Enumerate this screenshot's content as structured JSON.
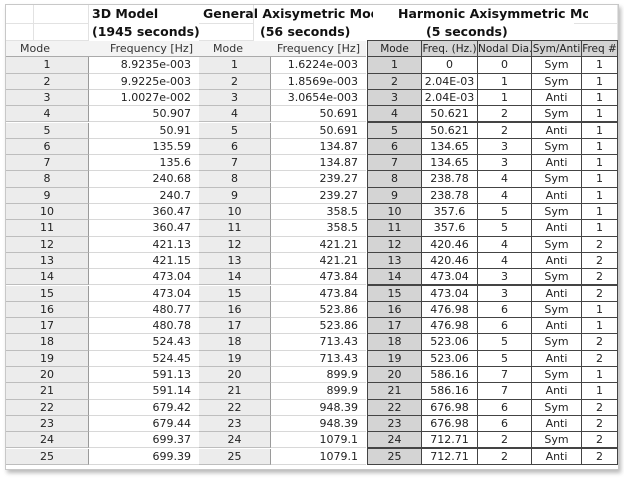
{
  "headers": {
    "model_3d": "3D  Model",
    "model_3d_time": "(1945 seconds)",
    "general": "General Axisymetric Model",
    "general_time": "(56 seconds)",
    "harmonic": "Harmonic Axisymmetric Model",
    "harmonic_time": "(5 seconds)"
  },
  "columns": {
    "mode": "Mode",
    "frequency": "Frequency [Hz]",
    "h_mode": "Mode",
    "h_freq": "Freq. (Hz.)",
    "h_nodal": "Nodal Dia.",
    "h_sym": "Sym/Anti",
    "h_freqnum": "Freq #"
  },
  "rows": [
    {
      "mode": "1",
      "f3d": "8.9235e-003",
      "gmode": "1",
      "fgen": "1.6224e-003",
      "hmode": "1",
      "fh": "0",
      "nd": "0",
      "sym": "Sym",
      "fn": "1"
    },
    {
      "mode": "2",
      "f3d": "9.9225e-003",
      "gmode": "2",
      "fgen": "1.8569e-003",
      "hmode": "2",
      "fh": "2.04E-03",
      "nd": "1",
      "sym": "Sym",
      "fn": "1"
    },
    {
      "mode": "3",
      "f3d": "1.0027e-002",
      "gmode": "3",
      "fgen": "3.0654e-003",
      "hmode": "3",
      "fh": "2.04E-03",
      "nd": "1",
      "sym": "Anti",
      "fn": "1"
    },
    {
      "mode": "4",
      "f3d": "50.907",
      "gmode": "4",
      "fgen": "50.691",
      "hmode": "4",
      "fh": "50.621",
      "nd": "2",
      "sym": "Sym",
      "fn": "1"
    },
    {
      "mode": "5",
      "f3d": "50.91",
      "gmode": "5",
      "fgen": "50.691",
      "hmode": "5",
      "fh": "50.621",
      "nd": "2",
      "sym": "Anti",
      "fn": "1"
    },
    {
      "mode": "6",
      "f3d": "135.59",
      "gmode": "6",
      "fgen": "134.87",
      "hmode": "6",
      "fh": "134.65",
      "nd": "3",
      "sym": "Sym",
      "fn": "1"
    },
    {
      "mode": "7",
      "f3d": "135.6",
      "gmode": "7",
      "fgen": "134.87",
      "hmode": "7",
      "fh": "134.65",
      "nd": "3",
      "sym": "Anti",
      "fn": "1"
    },
    {
      "mode": "8",
      "f3d": "240.68",
      "gmode": "8",
      "fgen": "239.27",
      "hmode": "8",
      "fh": "238.78",
      "nd": "4",
      "sym": "Sym",
      "fn": "1"
    },
    {
      "mode": "9",
      "f3d": "240.7",
      "gmode": "9",
      "fgen": "239.27",
      "hmode": "9",
      "fh": "238.78",
      "nd": "4",
      "sym": "Anti",
      "fn": "1"
    },
    {
      "mode": "10",
      "f3d": "360.47",
      "gmode": "10",
      "fgen": "358.5",
      "hmode": "10",
      "fh": "357.6",
      "nd": "5",
      "sym": "Sym",
      "fn": "1"
    },
    {
      "mode": "11",
      "f3d": "360.47",
      "gmode": "11",
      "fgen": "358.5",
      "hmode": "11",
      "fh": "357.6",
      "nd": "5",
      "sym": "Anti",
      "fn": "1"
    },
    {
      "mode": "12",
      "f3d": "421.13",
      "gmode": "12",
      "fgen": "421.21",
      "hmode": "12",
      "fh": "420.46",
      "nd": "4",
      "sym": "Sym",
      "fn": "2"
    },
    {
      "mode": "13",
      "f3d": "421.15",
      "gmode": "13",
      "fgen": "421.21",
      "hmode": "13",
      "fh": "420.46",
      "nd": "4",
      "sym": "Anti",
      "fn": "2"
    },
    {
      "mode": "14",
      "f3d": "473.04",
      "gmode": "14",
      "fgen": "473.84",
      "hmode": "14",
      "fh": "473.04",
      "nd": "3",
      "sym": "Sym",
      "fn": "2"
    },
    {
      "mode": "15",
      "f3d": "473.04",
      "gmode": "15",
      "fgen": "473.84",
      "hmode": "15",
      "fh": "473.04",
      "nd": "3",
      "sym": "Anti",
      "fn": "2"
    },
    {
      "mode": "16",
      "f3d": "480.77",
      "gmode": "16",
      "fgen": "523.86",
      "hmode": "16",
      "fh": "476.98",
      "nd": "6",
      "sym": "Sym",
      "fn": "1"
    },
    {
      "mode": "17",
      "f3d": "480.78",
      "gmode": "17",
      "fgen": "523.86",
      "hmode": "17",
      "fh": "476.98",
      "nd": "6",
      "sym": "Anti",
      "fn": "1"
    },
    {
      "mode": "18",
      "f3d": "524.43",
      "gmode": "18",
      "fgen": "713.43",
      "hmode": "18",
      "fh": "523.06",
      "nd": "5",
      "sym": "Sym",
      "fn": "2"
    },
    {
      "mode": "19",
      "f3d": "524.45",
      "gmode": "19",
      "fgen": "713.43",
      "hmode": "19",
      "fh": "523.06",
      "nd": "5",
      "sym": "Anti",
      "fn": "2"
    },
    {
      "mode": "20",
      "f3d": "591.13",
      "gmode": "20",
      "fgen": "899.9",
      "hmode": "20",
      "fh": "586.16",
      "nd": "7",
      "sym": "Sym",
      "fn": "1"
    },
    {
      "mode": "21",
      "f3d": "591.14",
      "gmode": "21",
      "fgen": "899.9",
      "hmode": "21",
      "fh": "586.16",
      "nd": "7",
      "sym": "Anti",
      "fn": "1"
    },
    {
      "mode": "22",
      "f3d": "679.42",
      "gmode": "22",
      "fgen": "948.39",
      "hmode": "22",
      "fh": "676.98",
      "nd": "6",
      "sym": "Sym",
      "fn": "2"
    },
    {
      "mode": "23",
      "f3d": "679.44",
      "gmode": "23",
      "fgen": "948.39",
      "hmode": "23",
      "fh": "676.98",
      "nd": "6",
      "sym": "Anti",
      "fn": "2"
    },
    {
      "mode": "24",
      "f3d": "699.37",
      "gmode": "24",
      "fgen": "1079.1",
      "hmode": "24",
      "fh": "712.71",
      "nd": "2",
      "sym": "Sym",
      "fn": "2"
    },
    {
      "mode": "25",
      "f3d": "699.39",
      "gmode": "25",
      "fgen": "1079.1",
      "hmode": "25",
      "fh": "712.71",
      "nd": "2",
      "sym": "Anti",
      "fn": "2"
    }
  ]
}
